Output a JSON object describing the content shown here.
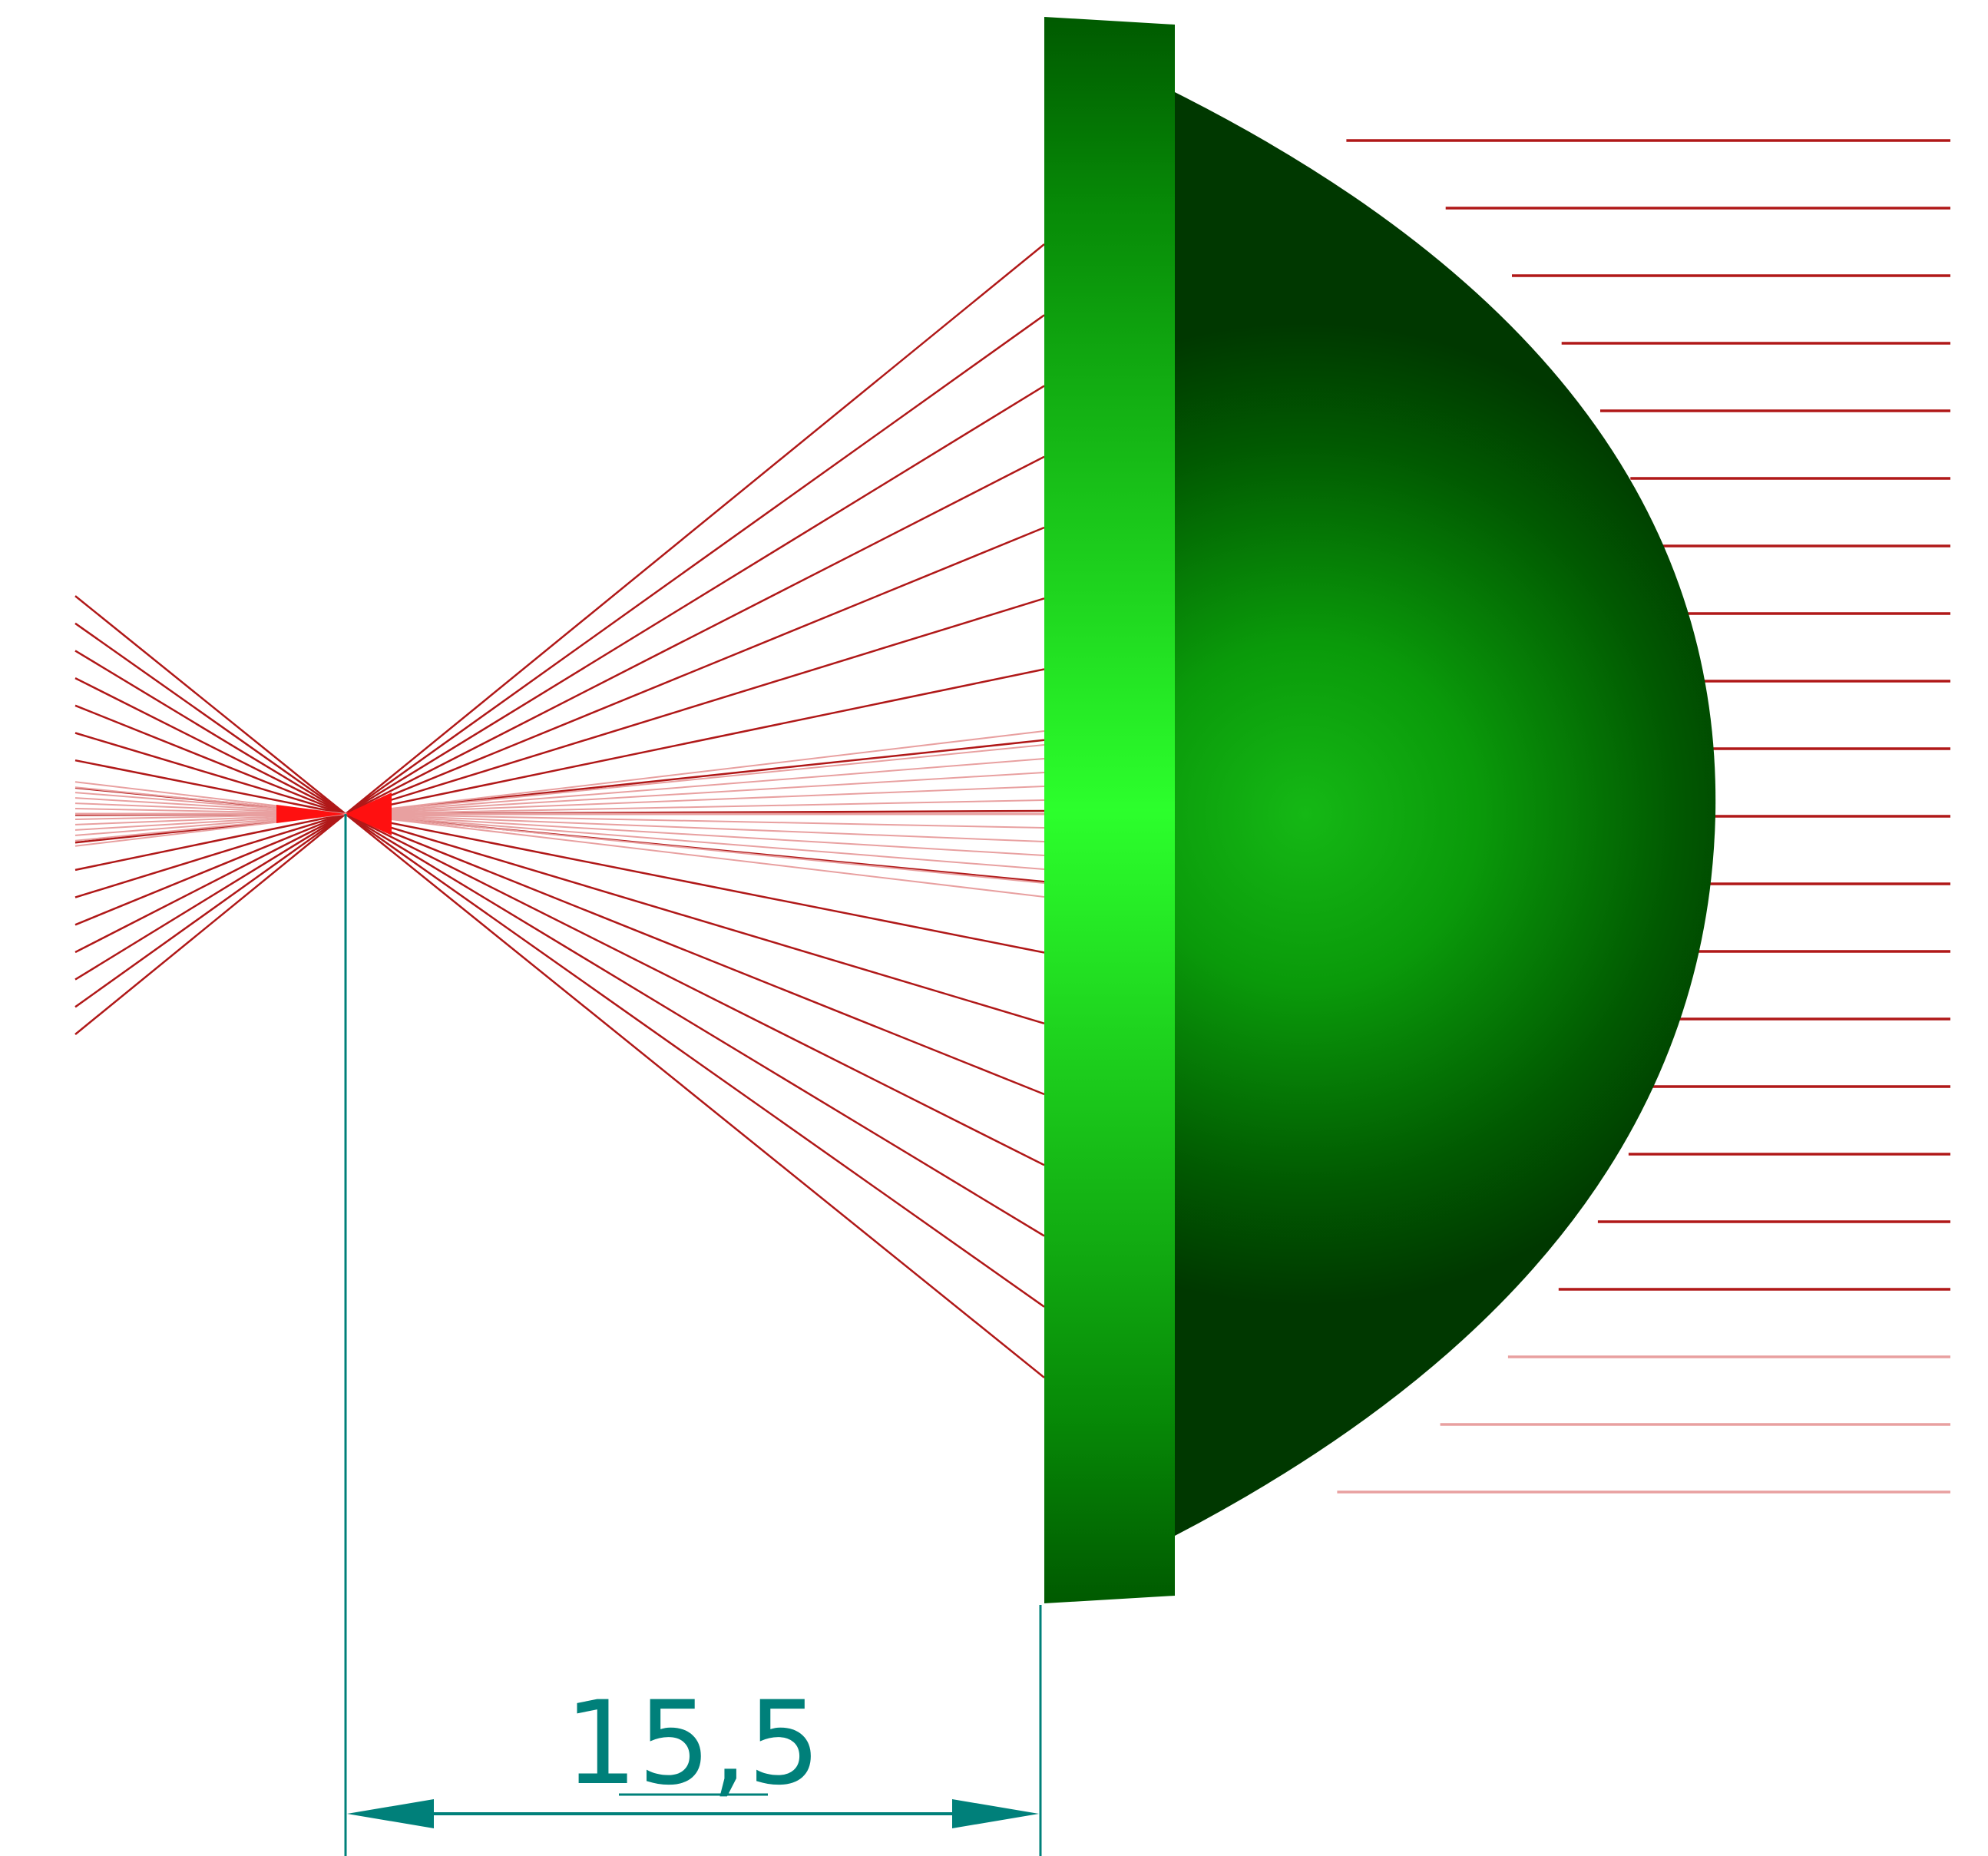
{
  "diagram": {
    "dimension": {
      "label": "15,5"
    },
    "colors": {
      "ray": "#b01818",
      "ray_focus": "#ff1010",
      "ray_faint": "#e8a0a0",
      "lens_light": "#2cff2c",
      "lens_mid": "#08a808",
      "lens_dark": "#003d00",
      "dimension": "#00807a"
    }
  }
}
